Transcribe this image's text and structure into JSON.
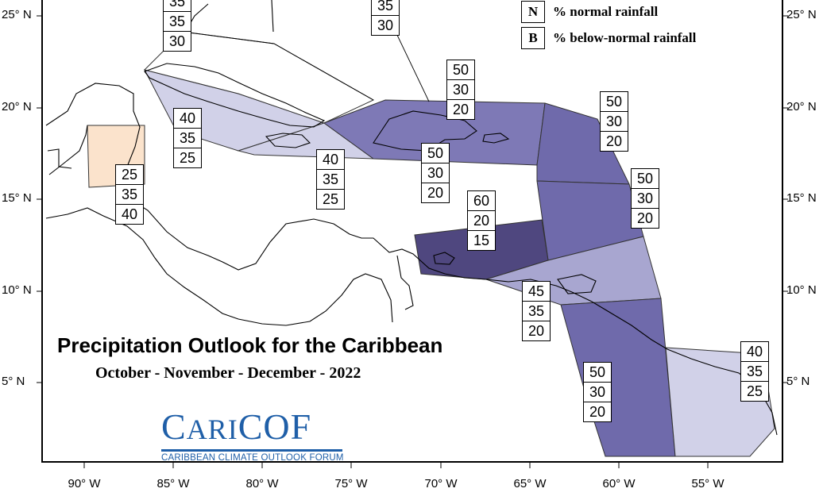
{
  "map": {
    "latitude_labels": [
      "25° N",
      "20° N",
      "15° N",
      "10° N",
      "5° N"
    ],
    "longitude_labels": [
      "90° W",
      "85° W",
      "80° W",
      "75° W",
      "70° W",
      "65° W",
      "60° W",
      "55° W"
    ]
  },
  "legend": {
    "items": [
      {
        "key": "N",
        "text": "% normal rainfall"
      },
      {
        "key": "B",
        "text": "% below-normal rainfall"
      }
    ]
  },
  "title": "Precipitation Outlook for the Caribbean",
  "subtitle": "October - November - December - 2022",
  "logo": {
    "name": "CariCOF",
    "tagline": "CARIBBEAN CLIMATE OUTLOOK FORUM"
  },
  "region_colors": {
    "light": "#d1d1e8",
    "medium_light": "#a8a6d0",
    "medium": "#7e79b6",
    "dark": "#6f6aab",
    "darkest": "#4f477f",
    "orange": "#fbe3cc"
  },
  "probability_boxes": [
    {
      "id": "bahamas-west",
      "values": [
        "35",
        "35",
        "30"
      ],
      "shade": "light"
    },
    {
      "id": "bahamas-east",
      "values": [
        "35",
        "30"
      ],
      "shade": "light"
    },
    {
      "id": "cuba",
      "values": [
        "40",
        "35",
        "25"
      ],
      "shade": "light"
    },
    {
      "id": "jamaica",
      "values": [
        "40",
        "35",
        "25"
      ],
      "shade": "light"
    },
    {
      "id": "hispaniola-north",
      "values": [
        "50",
        "30",
        "20"
      ],
      "shade": "dark"
    },
    {
      "id": "hispaniola-south",
      "values": [
        "50",
        "30",
        "20"
      ],
      "shade": "dark"
    },
    {
      "id": "leeward-islands",
      "values": [
        "50",
        "30",
        "20"
      ],
      "shade": "dark"
    },
    {
      "id": "windward-islands",
      "values": [
        "50",
        "30",
        "20"
      ],
      "shade": "dark"
    },
    {
      "id": "belize",
      "values": [
        "25",
        "35",
        "40"
      ],
      "shade": "orange"
    },
    {
      "id": "abc-islands",
      "values": [
        "60",
        "20",
        "15"
      ],
      "shade": "darkest"
    },
    {
      "id": "trinidad",
      "values": [
        "45",
        "35",
        "20"
      ],
      "shade": "medium_light"
    },
    {
      "id": "guyana",
      "values": [
        "50",
        "30",
        "20"
      ],
      "shade": "dark"
    },
    {
      "id": "french-guiana",
      "values": [
        "40",
        "35",
        "25"
      ],
      "shade": "light"
    }
  ]
}
